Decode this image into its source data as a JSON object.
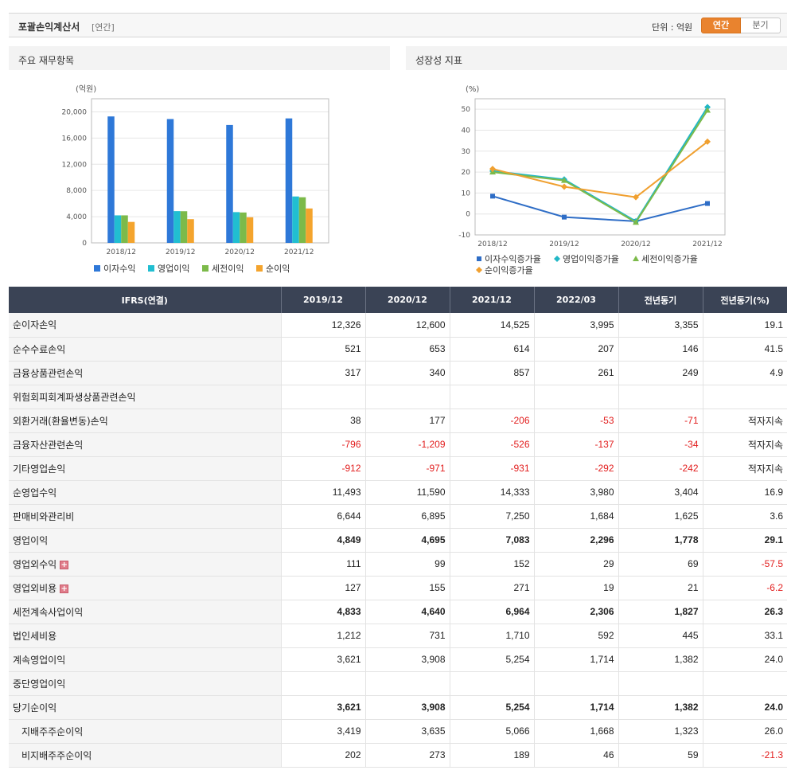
{
  "header": {
    "title": "포괄손익계산서",
    "subtitle": "[연간]",
    "unit_label": "단위 : 억원",
    "toggle": [
      "연간",
      "분기"
    ]
  },
  "panels": {
    "left_title": "주요 재무항목",
    "right_title": "성장성 지표"
  },
  "chart_data": [
    {
      "type": "bar",
      "ylabel": "(억원)",
      "categories": [
        "2018/12",
        "2019/12",
        "2020/12",
        "2021/12"
      ],
      "ylim": [
        0,
        22000
      ],
      "yticks": [
        0,
        4000,
        8000,
        12000,
        16000,
        20000
      ],
      "ytick_labels": [
        "0",
        "4,000",
        "8,000",
        "12,000",
        "16,000",
        "20,000"
      ],
      "grid": true,
      "legend_position": "bottom",
      "series": [
        {
          "name": "이자수익",
          "color": "#2e78d8",
          "values": [
            19300,
            18900,
            18000,
            19000
          ]
        },
        {
          "name": "영업이익",
          "color": "#21bed1",
          "values": [
            4200,
            4849,
            4695,
            7083
          ]
        },
        {
          "name": "세전이익",
          "color": "#7cba4a",
          "values": [
            4200,
            4833,
            4640,
            6964
          ]
        },
        {
          "name": "순이익",
          "color": "#f4a42d",
          "values": [
            3200,
            3621,
            3908,
            5254
          ]
        }
      ]
    },
    {
      "type": "line",
      "ylabel": "(%)",
      "categories": [
        "2018/12",
        "2019/12",
        "2020/12",
        "2021/12"
      ],
      "ylim": [
        -10,
        55
      ],
      "yticks": [
        -10,
        0,
        10,
        20,
        30,
        40,
        50
      ],
      "ytick_labels": [
        "-10",
        "0",
        "10",
        "20",
        "30",
        "40",
        "50"
      ],
      "grid": true,
      "legend_position": "bottom",
      "series": [
        {
          "name": "이자수익증가율",
          "color": "#2e6dc6",
          "marker": "square",
          "values": [
            8.5,
            -1.5,
            -3.5,
            5.0
          ]
        },
        {
          "name": "영업이익증가율",
          "color": "#21b7c6",
          "marker": "diamond",
          "values": [
            20.5,
            16.5,
            -3.5,
            51.0
          ]
        },
        {
          "name": "세전이익증가율",
          "color": "#7cba4a",
          "marker": "triangle",
          "values": [
            20.0,
            16.0,
            -4.0,
            49.5
          ]
        },
        {
          "name": "순이익증가율",
          "color": "#f0a030",
          "marker": "diamond",
          "values": [
            21.5,
            13.0,
            8.0,
            34.5
          ]
        }
      ]
    }
  ],
  "table": {
    "headers": [
      "IFRS(연결)",
      "2019/12",
      "2020/12",
      "2021/12",
      "2022/03",
      "전년동기",
      "전년동기(%)"
    ],
    "rows": [
      {
        "label": "순이자손익",
        "cells": [
          "12,326",
          "12,600",
          "14,525",
          "3,995",
          "3,355",
          "19.1"
        ]
      },
      {
        "label": "순수수료손익",
        "cells": [
          "521",
          "653",
          "614",
          "207",
          "146",
          "41.5"
        ]
      },
      {
        "label": "금융상품관련손익",
        "cells": [
          "317",
          "340",
          "857",
          "261",
          "249",
          "4.9"
        ]
      },
      {
        "label": "위험회피회계파생상품관련손익",
        "cells": [
          "",
          "",
          "",
          "",
          "",
          ""
        ]
      },
      {
        "label": "외환거래(환율변동)손익",
        "cells": [
          "38",
          "177",
          "-206",
          "-53",
          "-71",
          "적자지속"
        ]
      },
      {
        "label": "금융자산관련손익",
        "cells": [
          "-796",
          "-1,209",
          "-526",
          "-137",
          "-34",
          "적자지속"
        ]
      },
      {
        "label": "기타영업손익",
        "cells": [
          "-912",
          "-971",
          "-931",
          "-292",
          "-242",
          "적자지속"
        ]
      },
      {
        "label": "순영업수익",
        "cells": [
          "11,493",
          "11,590",
          "14,333",
          "3,980",
          "3,404",
          "16.9"
        ]
      },
      {
        "label": "판매비와관리비",
        "cells": [
          "6,644",
          "6,895",
          "7,250",
          "1,684",
          "1,625",
          "3.6"
        ]
      },
      {
        "label": "영업이익",
        "bold": true,
        "cells": [
          "4,849",
          "4,695",
          "7,083",
          "2,296",
          "1,778",
          "29.1"
        ]
      },
      {
        "label": "영업외수익",
        "expand": true,
        "cells": [
          "111",
          "99",
          "152",
          "29",
          "69",
          "-57.5"
        ]
      },
      {
        "label": "영업외비용",
        "expand": true,
        "cells": [
          "127",
          "155",
          "271",
          "19",
          "21",
          "-6.2"
        ]
      },
      {
        "label": "세전계속사업이익",
        "bold": true,
        "cells": [
          "4,833",
          "4,640",
          "6,964",
          "2,306",
          "1,827",
          "26.3"
        ]
      },
      {
        "label": "법인세비용",
        "cells": [
          "1,212",
          "731",
          "1,710",
          "592",
          "445",
          "33.1"
        ]
      },
      {
        "label": "계속영업이익",
        "cells": [
          "3,621",
          "3,908",
          "5,254",
          "1,714",
          "1,382",
          "24.0"
        ]
      },
      {
        "label": "중단영업이익",
        "cells": [
          "",
          "",
          "",
          "",
          "",
          ""
        ]
      },
      {
        "label": "당기순이익",
        "bold": true,
        "cells": [
          "3,621",
          "3,908",
          "5,254",
          "1,714",
          "1,382",
          "24.0"
        ]
      },
      {
        "label": "지배주주순이익",
        "indent": true,
        "cells": [
          "3,419",
          "3,635",
          "5,066",
          "1,668",
          "1,323",
          "26.0"
        ]
      },
      {
        "label": "비지배주주순이익",
        "indent": true,
        "cells": [
          "202",
          "273",
          "189",
          "46",
          "59",
          "-21.3"
        ]
      }
    ]
  }
}
